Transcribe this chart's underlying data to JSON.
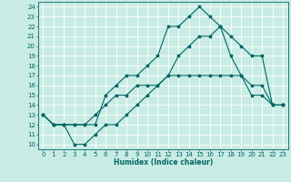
{
  "xlabel": "Humidex (Indice chaleur)",
  "bg_color": "#c8ece4",
  "grid_color": "#ffffff",
  "line_color": "#006666",
  "xlim": [
    -0.5,
    23.5
  ],
  "ylim": [
    9.5,
    24.5
  ],
  "yticks": [
    10,
    11,
    12,
    13,
    14,
    15,
    16,
    17,
    18,
    19,
    20,
    21,
    22,
    23,
    24
  ],
  "xticks": [
    0,
    1,
    2,
    3,
    4,
    5,
    6,
    7,
    8,
    9,
    10,
    11,
    12,
    13,
    14,
    15,
    16,
    17,
    18,
    19,
    20,
    21,
    22,
    23
  ],
  "curve1_x": [
    0,
    1,
    2,
    3,
    4,
    5,
    6,
    7,
    8,
    9,
    10,
    11,
    12,
    13,
    14,
    15,
    16,
    17,
    18,
    19,
    20,
    21,
    22,
    23
  ],
  "curve1_y": [
    13,
    12,
    12,
    10,
    10,
    11,
    12,
    12,
    13,
    14,
    15,
    16,
    17,
    19,
    20,
    21,
    21,
    22,
    19,
    17,
    15,
    15,
    14,
    14
  ],
  "curve2_x": [
    0,
    1,
    2,
    3,
    4,
    5,
    6,
    7,
    8,
    9,
    10,
    11,
    12,
    13,
    14,
    15,
    16,
    17,
    18,
    19,
    20,
    21,
    22,
    23
  ],
  "curve2_y": [
    13,
    12,
    12,
    12,
    12,
    12,
    15,
    16,
    17,
    17,
    18,
    19,
    22,
    22,
    23,
    24,
    23,
    22,
    21,
    20,
    19,
    19,
    14,
    14
  ],
  "curve3_x": [
    0,
    1,
    2,
    3,
    4,
    5,
    6,
    7,
    8,
    9,
    10,
    11,
    12,
    13,
    14,
    15,
    16,
    17,
    18,
    19,
    20,
    21,
    22,
    23
  ],
  "curve3_y": [
    13,
    12,
    12,
    12,
    12,
    13,
    14,
    15,
    15,
    16,
    16,
    16,
    17,
    17,
    17,
    17,
    17,
    17,
    17,
    17,
    16,
    16,
    14,
    14
  ],
  "label_fontsize": 5,
  "xlabel_fontsize": 5.5,
  "lw": 0.8,
  "marker_size": 2.5
}
